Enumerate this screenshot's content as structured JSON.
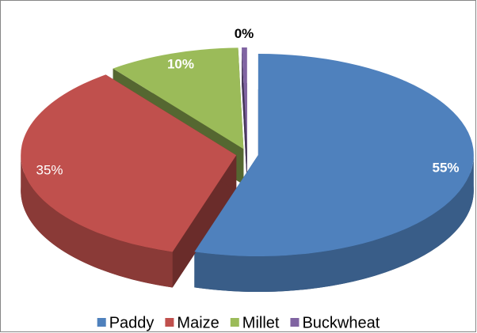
{
  "chart_data": {
    "type": "pie3d",
    "categories": [
      "Paddy",
      "Maize",
      "Millet",
      "Buckwheat"
    ],
    "values": [
      55,
      35,
      10,
      0.4
    ],
    "value_labels": [
      "55%",
      "35%",
      "10%",
      "0%"
    ],
    "colors": [
      "#4f81bd",
      "#c0504d",
      "#9bbb59",
      "#8064a2"
    ],
    "legend": "bottom"
  }
}
